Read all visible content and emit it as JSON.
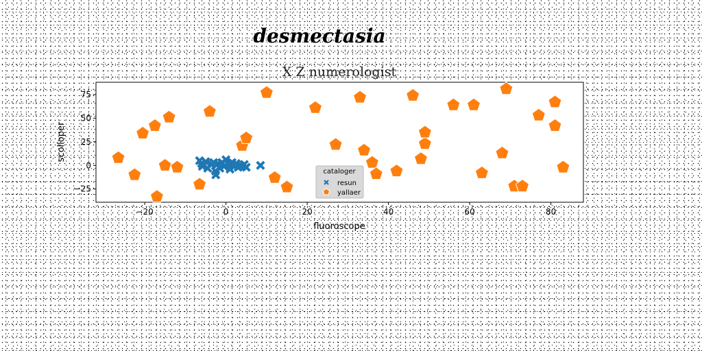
{
  "chart_data": {
    "type": "scatter",
    "suptitle": "desmectasia",
    "title": "X Z numerologist",
    "xlabel": "fluoroscope",
    "ylabel": "scolloper",
    "xlim": [
      -32,
      88
    ],
    "ylim": [
      -39,
      88
    ],
    "xticks": [
      -20,
      0,
      20,
      40,
      60,
      80
    ],
    "yticks": [
      -25,
      0,
      25,
      50,
      75
    ],
    "grid": false,
    "legend": {
      "title": "cataloger",
      "placement": "lower-center"
    },
    "series": [
      {
        "name": "resun",
        "marker": "x",
        "color": "#1f77b4",
        "points": [
          [
            -6.5,
            5
          ],
          [
            -6,
            2
          ],
          [
            -5.8,
            -1
          ],
          [
            -5,
            4
          ],
          [
            -4.5,
            -3
          ],
          [
            -3.5,
            1
          ],
          [
            -3,
            3
          ],
          [
            -2.6,
            -6
          ],
          [
            -2.5,
            -10
          ],
          [
            -2,
            2
          ],
          [
            -1.5,
            -3
          ],
          [
            -1,
            3
          ],
          [
            -0.5,
            -1
          ],
          [
            0,
            6
          ],
          [
            0.5,
            2
          ],
          [
            1,
            0
          ],
          [
            1,
            -4
          ],
          [
            1.5,
            3
          ],
          [
            2,
            -1
          ],
          [
            2.5,
            2
          ],
          [
            3,
            -2
          ],
          [
            3.5,
            0
          ],
          [
            4,
            -1
          ],
          [
            4.5,
            1
          ],
          [
            5,
            -2
          ],
          [
            8.5,
            0
          ]
        ]
      },
      {
        "name": "yallaer",
        "marker": "pentagon",
        "color": "#ff7f0e",
        "points": [
          [
            -26.5,
            8
          ],
          [
            -22.5,
            -10
          ],
          [
            -20.5,
            34
          ],
          [
            -17.5,
            42
          ],
          [
            -17,
            -33
          ],
          [
            -15,
            0
          ],
          [
            -14,
            51
          ],
          [
            -12,
            -2
          ],
          [
            -6.5,
            -20
          ],
          [
            -4,
            57
          ],
          [
            4,
            21
          ],
          [
            5,
            29
          ],
          [
            10,
            77
          ],
          [
            12,
            -13
          ],
          [
            15,
            -23
          ],
          [
            22,
            61
          ],
          [
            27,
            22
          ],
          [
            33,
            72
          ],
          [
            34,
            16
          ],
          [
            36,
            3
          ],
          [
            37,
            -9
          ],
          [
            42,
            -6
          ],
          [
            46,
            74
          ],
          [
            48,
            7
          ],
          [
            49,
            23
          ],
          [
            49,
            35
          ],
          [
            56,
            64
          ],
          [
            61,
            64
          ],
          [
            63,
            -8
          ],
          [
            68,
            13
          ],
          [
            69,
            81
          ],
          [
            71,
            -22
          ],
          [
            73,
            -22
          ],
          [
            77,
            53
          ],
          [
            81,
            67
          ],
          [
            81,
            42
          ],
          [
            83,
            -2
          ]
        ]
      }
    ]
  }
}
